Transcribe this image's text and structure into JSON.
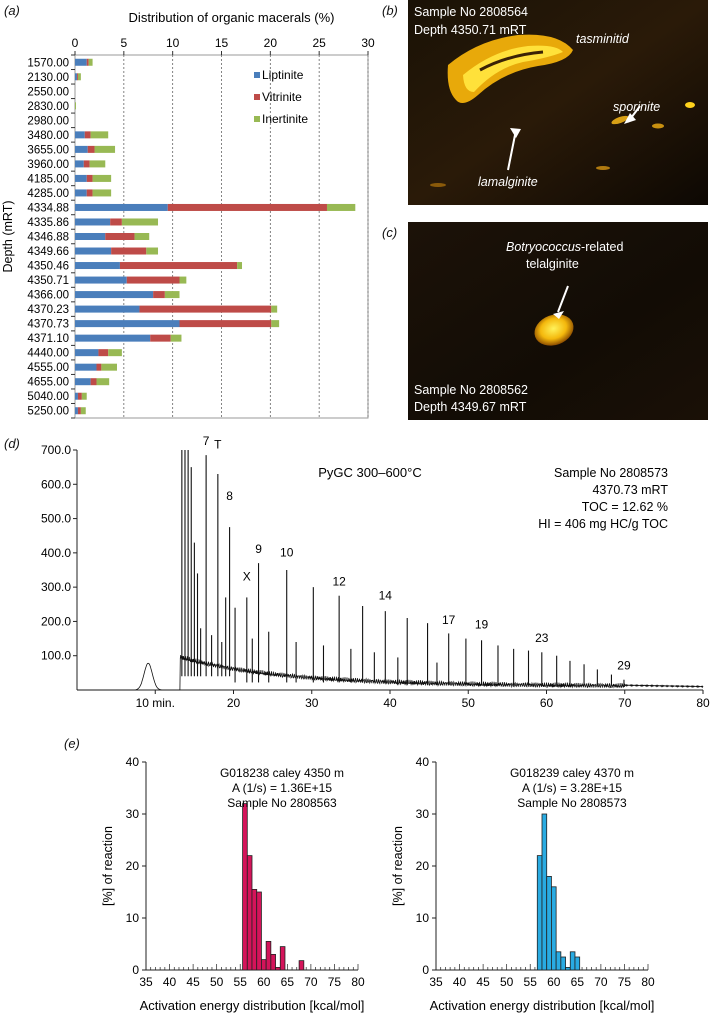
{
  "panels": {
    "a": "(a)",
    "b": "(b)",
    "c": "(c)",
    "d": "(d)",
    "e": "(e)"
  },
  "colors": {
    "liptinite": "#4a7ebb",
    "vitrinite": "#be4b48",
    "inertinite": "#98b954",
    "energy_left": "#d4145a",
    "energy_right": "#29abe2"
  },
  "micro_b": {
    "sample": "Sample No 2808564",
    "depth": "Depth 4350.71 mRT",
    "labels": [
      "tasminitid",
      "sporinite",
      "lamalginite"
    ]
  },
  "micro_c": {
    "label_italic": "Botryococcus",
    "label_rest": "-related",
    "label_line2": "telalginite",
    "sample": "Sample No 2808562",
    "depth": "Depth 4349.67 mRT"
  },
  "chart_data": [
    {
      "type": "bar",
      "orientation": "horizontal-stacked",
      "title": "Distribution of organic macerals (%)",
      "ylabel": "Depth (mRT)",
      "xlim": [
        0,
        30
      ],
      "xticks": [
        0,
        5,
        10,
        15,
        20,
        25,
        30
      ],
      "grid": true,
      "legend_position": "top-right",
      "categories": [
        "1570.00",
        "2130.00",
        "2550.00",
        "2830.00",
        "2980.00",
        "3480.00",
        "3655.00",
        "3960.00",
        "4185.00",
        "4285.00",
        "4334.88",
        "4335.86",
        "4346.88",
        "4349.66",
        "4350.46",
        "4350.71",
        "4366.00",
        "4370.23",
        "4370.73",
        "4371.10",
        "4440.00",
        "4555.00",
        "4655.00",
        "5040.00",
        "5250.00"
      ],
      "series": [
        {
          "name": "Liptinite",
          "values": [
            1.2,
            0.2,
            0,
            0,
            0,
            1.0,
            1.3,
            0.9,
            1.2,
            1.2,
            9.5,
            3.6,
            3.1,
            3.7,
            4.6,
            5.3,
            8.0,
            6.6,
            10.7,
            7.7,
            2.4,
            2.2,
            1.6,
            0.3,
            0.3
          ]
        },
        {
          "name": "Vitrinite",
          "values": [
            0.2,
            0.1,
            0,
            0,
            0,
            0.6,
            0.7,
            0.6,
            0.6,
            0.6,
            16.3,
            1.2,
            3.0,
            3.6,
            12.0,
            5.4,
            1.2,
            13.5,
            9.4,
            2.1,
            1.0,
            0.5,
            0.6,
            0.4,
            0.3
          ]
        },
        {
          "name": "Inertinite",
          "values": [
            0.4,
            0.3,
            0,
            0.1,
            0,
            1.8,
            2.1,
            1.6,
            1.9,
            1.9,
            2.9,
            3.7,
            1.5,
            1.2,
            0.5,
            0.7,
            1.5,
            0.6,
            0.8,
            1.1,
            1.4,
            1.6,
            1.3,
            0.5,
            0.5
          ]
        }
      ]
    },
    {
      "type": "line",
      "title": "PyGC  300–600°C",
      "yticks": [
        "100.0",
        "200.0",
        "300.0",
        "400.0",
        "500.0",
        "600.0",
        "700.0"
      ],
      "ylim": [
        0,
        700
      ],
      "xticks": [
        "10 min.",
        "20",
        "30",
        "40",
        "50",
        "60",
        "70",
        "80"
      ],
      "xlim": [
        0,
        80
      ],
      "info": [
        "Sample No 2808573",
        "4370.73 mRT",
        "TOC = 12.62 %",
        "HI = 406 mg HC/g TOC"
      ],
      "peak_labels": [
        {
          "label": "7",
          "x": 16.5,
          "y": 700
        },
        {
          "label": "T",
          "x": 18.0,
          "y": 690
        },
        {
          "label": "8",
          "x": 19.5,
          "y": 540
        },
        {
          "label": "9",
          "x": 23.2,
          "y": 385
        },
        {
          "label": "X",
          "x": 21.7,
          "y": 305
        },
        {
          "label": "10",
          "x": 26.8,
          "y": 375
        },
        {
          "label": "12",
          "x": 33.5,
          "y": 290
        },
        {
          "label": "14",
          "x": 39.4,
          "y": 250
        },
        {
          "label": "17",
          "x": 47.5,
          "y": 178
        },
        {
          "label": "19",
          "x": 51.7,
          "y": 165
        },
        {
          "label": "23",
          "x": 59.4,
          "y": 125
        },
        {
          "label": "29",
          "x": 69.9,
          "y": 45
        }
      ],
      "peaks": [
        {
          "x": 13.4,
          "y": 700
        },
        {
          "x": 13.8,
          "y": 700
        },
        {
          "x": 14.2,
          "y": 700
        },
        {
          "x": 14.6,
          "y": 650
        },
        {
          "x": 15.0,
          "y": 430
        },
        {
          "x": 15.4,
          "y": 340
        },
        {
          "x": 15.8,
          "y": 180
        },
        {
          "x": 16.5,
          "y": 685
        },
        {
          "x": 17.2,
          "y": 160
        },
        {
          "x": 18.0,
          "y": 630
        },
        {
          "x": 18.5,
          "y": 140
        },
        {
          "x": 19.0,
          "y": 270
        },
        {
          "x": 19.5,
          "y": 475
        },
        {
          "x": 20.2,
          "y": 240
        },
        {
          "x": 21.7,
          "y": 270
        },
        {
          "x": 22.4,
          "y": 150
        },
        {
          "x": 23.2,
          "y": 370
        },
        {
          "x": 24.5,
          "y": 170
        },
        {
          "x": 26.8,
          "y": 350
        },
        {
          "x": 28.0,
          "y": 140
        },
        {
          "x": 30.2,
          "y": 300
        },
        {
          "x": 31.5,
          "y": 130
        },
        {
          "x": 33.5,
          "y": 275
        },
        {
          "x": 35.0,
          "y": 120
        },
        {
          "x": 36.5,
          "y": 245
        },
        {
          "x": 38.0,
          "y": 110
        },
        {
          "x": 39.4,
          "y": 230
        },
        {
          "x": 41.0,
          "y": 95
        },
        {
          "x": 42.2,
          "y": 210
        },
        {
          "x": 44.8,
          "y": 195
        },
        {
          "x": 46.0,
          "y": 80
        },
        {
          "x": 47.5,
          "y": 165
        },
        {
          "x": 49.7,
          "y": 150
        },
        {
          "x": 51.7,
          "y": 145
        },
        {
          "x": 53.8,
          "y": 130
        },
        {
          "x": 55.8,
          "y": 120
        },
        {
          "x": 57.7,
          "y": 115
        },
        {
          "x": 59.4,
          "y": 110
        },
        {
          "x": 61.3,
          "y": 100
        },
        {
          "x": 63.0,
          "y": 85
        },
        {
          "x": 64.8,
          "y": 75
        },
        {
          "x": 66.5,
          "y": 60
        },
        {
          "x": 68.3,
          "y": 45
        },
        {
          "x": 69.9,
          "y": 30
        },
        {
          "x": 72.5,
          "y": 15
        },
        {
          "x": 75.0,
          "y": 10
        }
      ]
    },
    {
      "type": "bar",
      "title": "G018238 caley 4350 m",
      "info": [
        "A (1/s) = 1.36E+15",
        "Sample No 2808563"
      ],
      "xlabel": "Activation energy distribution [kcal/mol]",
      "ylabel": "[%] of reaction",
      "xlim": [
        35,
        80
      ],
      "ylim": [
        0,
        40
      ],
      "xticks": [
        35,
        40,
        45,
        50,
        55,
        60,
        65,
        70,
        75,
        80
      ],
      "yticks": [
        0,
        10,
        20,
        30,
        40
      ],
      "x": [
        56,
        57,
        58,
        59,
        60,
        61,
        62,
        63,
        64,
        65,
        66,
        67,
        68
      ],
      "values": [
        32,
        22,
        15.5,
        15,
        2,
        5.5,
        3,
        0.5,
        4.5,
        0,
        0,
        0,
        1.8
      ]
    },
    {
      "type": "bar",
      "title": "G018239 caley 4370 m",
      "info": [
        "A (1/s) = 3.28E+15",
        "Sample No 2808573"
      ],
      "xlabel": "Activation energy distribution [kcal/mol]",
      "ylabel": "[%] of reaction",
      "xlim": [
        35,
        80
      ],
      "ylim": [
        0,
        40
      ],
      "xticks": [
        35,
        40,
        45,
        50,
        55,
        60,
        65,
        70,
        75,
        80
      ],
      "yticks": [
        0,
        10,
        20,
        30,
        40
      ],
      "x": [
        57,
        58,
        59,
        60,
        61,
        62,
        63,
        64,
        65
      ],
      "values": [
        22,
        30,
        18,
        16,
        3.5,
        2.5,
        0.5,
        3.5,
        2.5
      ]
    }
  ]
}
